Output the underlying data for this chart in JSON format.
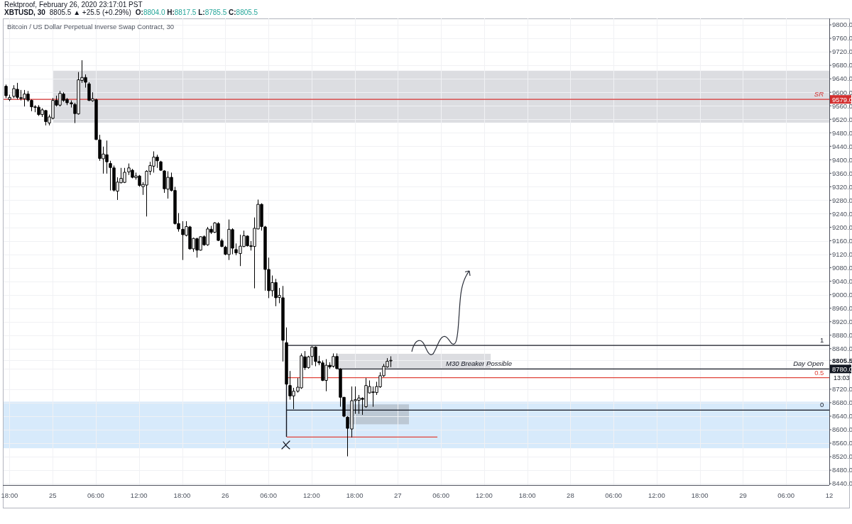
{
  "chart_data": {
    "type": "candlestick",
    "title": "Bitcoin / US Dollar Perpetual Inverse Swap Contract, 30",
    "annotations": [
      "Rektproof, February 26, 2020 23:17:01 PST",
      "XBTUSD, 30",
      "8805.5 ▲ +25.5 (+0.29%)",
      "O:8804.0 H:8817.5 L:8785.5 C:8805.5",
      "13:03",
      {
        "text": "1",
        "x": "2020-02-29T11:15",
        "y": 8850
      },
      {
        "text": "0.5",
        "x": "2020-02-29T11:15",
        "y": 8754
      },
      {
        "text": "0",
        "x": "2020-02-29T11:15",
        "y": 8658
      }
    ],
    "color": "#000000",
    "x": [
      "2020-02-24T17:30",
      "2020-02-24T18:00",
      "2020-02-24T18:30",
      "2020-02-24T19:00",
      "2020-02-24T19:30",
      "2020-02-24T20:00",
      "2020-02-24T20:30",
      "2020-02-24T21:00",
      "2020-02-24T21:30",
      "2020-02-24T22:00",
      "2020-02-24T22:30",
      "2020-02-24T23:00",
      "2020-02-24T23:30",
      "2020-02-25T00:00",
      "2020-02-25T00:30",
      "2020-02-25T01:00",
      "2020-02-25T01:30",
      "2020-02-25T02:00",
      "2020-02-25T02:30",
      "2020-02-25T03:00",
      "2020-02-25T03:30",
      "2020-02-25T04:00",
      "2020-02-25T04:30",
      "2020-02-25T05:00",
      "2020-02-25T05:30",
      "2020-02-25T06:00",
      "2020-02-25T06:30",
      "2020-02-25T07:00",
      "2020-02-25T07:30",
      "2020-02-25T08:00",
      "2020-02-25T08:30",
      "2020-02-25T09:00",
      "2020-02-25T09:30",
      "2020-02-25T10:00",
      "2020-02-25T10:30",
      "2020-02-25T11:00",
      "2020-02-25T11:30",
      "2020-02-25T12:00",
      "2020-02-25T12:30",
      "2020-02-25T13:00",
      "2020-02-25T13:30",
      "2020-02-25T14:00",
      "2020-02-25T14:30",
      "2020-02-25T15:00",
      "2020-02-25T15:30",
      "2020-02-25T16:00",
      "2020-02-25T16:30",
      "2020-02-25T17:00",
      "2020-02-25T17:30",
      "2020-02-25T18:00",
      "2020-02-25T18:30",
      "2020-02-25T19:00",
      "2020-02-25T19:30",
      "2020-02-25T20:00",
      "2020-02-25T20:30",
      "2020-02-25T21:00",
      "2020-02-25T21:30",
      "2020-02-25T22:00",
      "2020-02-25T22:30",
      "2020-02-25T23:00",
      "2020-02-25T23:30",
      "2020-02-26T00:00",
      "2020-02-26T00:30",
      "2020-02-26T01:00",
      "2020-02-26T01:30",
      "2020-02-26T02:00",
      "2020-02-26T02:30",
      "2020-02-26T03:00",
      "2020-02-26T03:30",
      "2020-02-26T04:00",
      "2020-02-26T04:30",
      "2020-02-26T05:00",
      "2020-02-26T05:30",
      "2020-02-26T06:00",
      "2020-02-26T06:30",
      "2020-02-26T07:00",
      "2020-02-26T07:30",
      "2020-02-26T08:00",
      "2020-02-26T08:30",
      "2020-02-26T09:00",
      "2020-02-26T09:30",
      "2020-02-26T10:00",
      "2020-02-26T10:30",
      "2020-02-26T11:00",
      "2020-02-26T11:30",
      "2020-02-26T12:00",
      "2020-02-26T12:30",
      "2020-02-26T13:00",
      "2020-02-26T13:30",
      "2020-02-26T14:00",
      "2020-02-26T14:30",
      "2020-02-26T15:00",
      "2020-02-26T15:30",
      "2020-02-26T16:00",
      "2020-02-26T16:30",
      "2020-02-26T17:00",
      "2020-02-26T17:30",
      "2020-02-26T18:00",
      "2020-02-26T18:30",
      "2020-02-26T19:00",
      "2020-02-26T19:30",
      "2020-02-26T20:00",
      "2020-02-26T20:30",
      "2020-02-26T21:00",
      "2020-02-26T21:30",
      "2020-02-26T22:00",
      "2020-02-26T22:30",
      "2020-02-26T23:00"
    ],
    "ohlc": [
      [
        9618,
        9623,
        9583,
        9590
      ],
      [
        9579,
        9593,
        9574,
        9585
      ],
      [
        9588,
        9621,
        9583,
        9611
      ],
      [
        9609,
        9628,
        9579,
        9585
      ],
      [
        9584,
        9607,
        9576,
        9582
      ],
      [
        9581,
        9607,
        9558,
        9595
      ],
      [
        9595,
        9604,
        9572,
        9577
      ],
      [
        9576,
        9579,
        9544,
        9557
      ],
      [
        9557,
        9562,
        9541,
        9556
      ],
      [
        9556,
        9562,
        9530,
        9534
      ],
      [
        9534,
        9553,
        9527,
        9548
      ],
      [
        9546,
        9548,
        9502,
        9513
      ],
      [
        9509,
        9534,
        9502,
        9527
      ],
      [
        9523,
        9583,
        9520,
        9576
      ],
      [
        9576,
        9590,
        9558,
        9562
      ],
      [
        9562,
        9604,
        9558,
        9597
      ],
      [
        9595,
        9600,
        9572,
        9576
      ],
      [
        9579,
        9583,
        9562,
        9569
      ],
      [
        9569,
        9576,
        9555,
        9566
      ],
      [
        9564,
        9569,
        9509,
        9537
      ],
      [
        9536,
        9660,
        9534,
        9637
      ],
      [
        9635,
        9695,
        9628,
        9644
      ],
      [
        9644,
        9653,
        9614,
        9630
      ],
      [
        9625,
        9630,
        9574,
        9576
      ],
      [
        9575,
        9600,
        9572,
        9581
      ],
      [
        9578,
        9581,
        9459,
        9460
      ],
      [
        9459,
        9474,
        9397,
        9404
      ],
      [
        9403,
        9439,
        9359,
        9417
      ],
      [
        9415,
        9457,
        9359,
        9394
      ],
      [
        9389,
        9397,
        9309,
        9377
      ],
      [
        9376,
        9383,
        9306,
        9310
      ],
      [
        9307,
        9348,
        9281,
        9334
      ],
      [
        9332,
        9376,
        9330,
        9345
      ],
      [
        9333,
        9376,
        9331,
        9363
      ],
      [
        9364,
        9389,
        9355,
        9376
      ],
      [
        9369,
        9373,
        9345,
        9348
      ],
      [
        9347,
        9362,
        9341,
        9352
      ],
      [
        9352,
        9355,
        9320,
        9324
      ],
      [
        9320,
        9334,
        9296,
        9327
      ],
      [
        9325,
        9369,
        9232,
        9366
      ],
      [
        9366,
        9394,
        9355,
        9383
      ],
      [
        9381,
        9425,
        9362,
        9408
      ],
      [
        9408,
        9415,
        9376,
        9397
      ],
      [
        9394,
        9397,
        9367,
        9369
      ],
      [
        9367,
        9369,
        9302,
        9314
      ],
      [
        9313,
        9366,
        9285,
        9348
      ],
      [
        9348,
        9362,
        9306,
        9309
      ],
      [
        9309,
        9320,
        9208,
        9211
      ],
      [
        9211,
        9242,
        9187,
        9195
      ],
      [
        9194,
        9218,
        9103,
        9178
      ],
      [
        9176,
        9218,
        9173,
        9202
      ],
      [
        9201,
        9204,
        9134,
        9136
      ],
      [
        9136,
        9169,
        9127,
        9167
      ],
      [
        9166,
        9169,
        9110,
        9132
      ],
      [
        9132,
        9173,
        9131,
        9172
      ],
      [
        9172,
        9176,
        9145,
        9148
      ],
      [
        9148,
        9201,
        9145,
        9195
      ],
      [
        9194,
        9204,
        9180,
        9185
      ],
      [
        9185,
        9215,
        9183,
        9213
      ],
      [
        9211,
        9215,
        9159,
        9161
      ],
      [
        9160,
        9166,
        9141,
        9143
      ],
      [
        9141,
        9145,
        9117,
        9120
      ],
      [
        9119,
        9223,
        9103,
        9194
      ],
      [
        9193,
        9197,
        9120,
        9138
      ],
      [
        9134,
        9152,
        9117,
        9124
      ],
      [
        9122,
        9178,
        9085,
        9144
      ],
      [
        9143,
        9190,
        9141,
        9175
      ],
      [
        9174,
        9176,
        9143,
        9145
      ],
      [
        9145,
        9159,
        9131,
        9143
      ],
      [
        9143,
        9229,
        9019,
        9197
      ],
      [
        9195,
        9282,
        9194,
        9268
      ],
      [
        9268,
        9271,
        9190,
        9202
      ],
      [
        9201,
        9204,
        9012,
        9075
      ],
      [
        9075,
        9110,
        8990,
        9012
      ],
      [
        9012,
        9057,
        8995,
        9036
      ],
      [
        9036,
        9047,
        8966,
        8991
      ],
      [
        8992,
        9020,
        8975,
        8998
      ],
      [
        8991,
        9026,
        8802,
        8865
      ],
      [
        8858,
        8903,
        8731,
        8735
      ],
      [
        8731,
        8774,
        8689,
        8700
      ],
      [
        8700,
        8724,
        8661,
        8714
      ],
      [
        8714,
        8753,
        8710,
        8726
      ],
      [
        8724,
        8826,
        8721,
        8819
      ],
      [
        8816,
        8833,
        8777,
        8784
      ],
      [
        8784,
        8819,
        8781,
        8816
      ],
      [
        8817,
        8847,
        8791,
        8845
      ],
      [
        8845,
        8847,
        8788,
        8802
      ],
      [
        8802,
        8819,
        8791,
        8798
      ],
      [
        8798,
        8805,
        8744,
        8746
      ],
      [
        8746,
        8809,
        8714,
        8791
      ],
      [
        8791,
        8800,
        8780,
        8786
      ],
      [
        8788,
        8826,
        8784,
        8817
      ],
      [
        8817,
        8826,
        8779,
        8781
      ],
      [
        8780,
        8782,
        8668,
        8696
      ],
      [
        8696,
        8697,
        8637,
        8640
      ],
      [
        8637,
        8640,
        8521,
        8604
      ],
      [
        8602,
        8728,
        8577,
        8686
      ],
      [
        8686,
        8728,
        8647,
        8689
      ],
      [
        8687,
        8703,
        8647,
        8694
      ],
      [
        8693,
        8696,
        8644,
        8690
      ],
      [
        8668,
        8753,
        8665,
        8731
      ],
      [
        8709,
        8746,
        8707,
        8728
      ],
      [
        8710,
        8728,
        8668,
        8712
      ],
      [
        8710,
        8742,
        8703,
        8728
      ],
      [
        8727,
        8770,
        8724,
        8760
      ],
      [
        8760,
        8795,
        8756,
        8788
      ],
      [
        8786,
        8812,
        8784,
        8803
      ],
      [
        8804.0,
        8817.5,
        8785.5,
        8805.5
      ]
    ],
    "xlim": [
      "2020-02-24T17:10",
      "2020-02-29T12:00"
    ],
    "xticks": [
      {
        "value": "2020-02-24T18:00",
        "label": "18:00"
      },
      {
        "value": "2020-02-25",
        "label": "25"
      },
      {
        "value": "2020-02-25T06:00",
        "label": "06:00"
      },
      {
        "value": "2020-02-25T12:00",
        "label": "12:00"
      },
      {
        "value": "2020-02-25T18:00",
        "label": "18:00"
      },
      {
        "value": "2020-02-26",
        "label": "26"
      },
      {
        "value": "2020-02-26T06:00",
        "label": "06:00"
      },
      {
        "value": "2020-02-26T12:00",
        "label": "12:00"
      },
      {
        "value": "2020-02-26T18:00",
        "label": "18:00"
      },
      {
        "value": "2020-02-27",
        "label": "27"
      },
      {
        "value": "2020-02-27T06:00",
        "label": "06:00"
      },
      {
        "value": "2020-02-27T12:00",
        "label": "12:00"
      },
      {
        "value": "2020-02-27T18:00",
        "label": "18:00"
      },
      {
        "value": "2020-02-28",
        "label": "28"
      },
      {
        "value": "2020-02-28T06:00",
        "label": "06:00"
      },
      {
        "value": "2020-02-28T12:00",
        "label": "12:00"
      },
      {
        "value": "2020-02-28T18:00",
        "label": "18:00"
      },
      {
        "value": "2020-02-29",
        "label": "29"
      },
      {
        "value": "2020-02-29T06:00",
        "label": "06:00"
      },
      {
        "value": "2020-02-29T12:00",
        "label": "12"
      }
    ],
    "ylim": [
      8436,
      9819
    ],
    "yticks": [
      {
        "value": 9800,
        "label": "9800.0"
      },
      {
        "value": 9760,
        "label": "9760.0"
      },
      {
        "value": 9720,
        "label": "9720.0"
      },
      {
        "value": 9680,
        "label": "9680.0"
      },
      {
        "value": 9640,
        "label": "9640.0"
      },
      {
        "value": 9600,
        "label": "9600.0"
      },
      {
        "value": 9579,
        "label": "9579.0"
      },
      {
        "value": 9560,
        "label": "9560.0"
      },
      {
        "value": 9520,
        "label": "9520.0"
      },
      {
        "value": 9480,
        "label": "9480.0"
      },
      {
        "value": 9440,
        "label": "9440.0"
      },
      {
        "value": 9400,
        "label": "9400.0"
      },
      {
        "value": 9360,
        "label": "9360.0"
      },
      {
        "value": 9320,
        "label": "9320.0"
      },
      {
        "value": 9280,
        "label": "9280.0"
      },
      {
        "value": 9240,
        "label": "9240.0"
      },
      {
        "value": 9200,
        "label": "9200.0"
      },
      {
        "value": 9160,
        "label": "9160.0"
      },
      {
        "value": 9120,
        "label": "9120.0"
      },
      {
        "value": 9080,
        "label": "9080.0"
      },
      {
        "value": 9040,
        "label": "9040.0"
      },
      {
        "value": 9000,
        "label": "9000.0"
      },
      {
        "value": 8960,
        "label": "8960.0"
      },
      {
        "value": 8920,
        "label": "8920.0"
      },
      {
        "value": 8880,
        "label": "8880.0"
      },
      {
        "value": 8840,
        "label": "8840.0"
      },
      {
        "value": 8805.5,
        "label": "8805.5"
      },
      {
        "value": 8780,
        "label": "8780.0"
      },
      {
        "value": 8720,
        "label": "8720.0"
      },
      {
        "value": 8680,
        "label": "8680.0"
      },
      {
        "value": 8640,
        "label": "8640.0"
      },
      {
        "value": 8600,
        "label": "8600.0"
      },
      {
        "value": 8560,
        "label": "8560.0"
      },
      {
        "value": 8520,
        "label": "8520.0"
      },
      {
        "value": 8480,
        "label": "8480.0"
      },
      {
        "value": 8440,
        "label": "8440.0"
      }
    ],
    "grid": true,
    "ref_lines": [
      {
        "axis": "y",
        "value": 9579,
        "label": "SR",
        "color": "#d32f2f"
      },
      {
        "axis": "y",
        "value": 8850,
        "color": "#131722"
      },
      {
        "axis": "y",
        "value": 8780,
        "label": "Day Open",
        "color": "#131722"
      },
      {
        "axis": "y",
        "value": 8754,
        "color": "#e0443a"
      },
      {
        "axis": "y",
        "value": 8658,
        "color": "#131722"
      },
      {
        "axis": "y",
        "value": 8578,
        "color": "#e0443a"
      }
    ],
    "bands": [
      {
        "axis": "y",
        "from": 9510,
        "to": 9664,
        "color": "#dcdde1"
      },
      {
        "axis": "y",
        "from": 8545,
        "to": 8683,
        "color": "#d7eafb"
      },
      {
        "axis": "y",
        "from": 8782,
        "to": 8825,
        "label": "M30 Breaker Possible",
        "color": "#dcdde1"
      },
      {
        "axis": "y",
        "from": 8616,
        "to": 8675,
        "color": "#bcc8d4"
      }
    ]
  }
}
